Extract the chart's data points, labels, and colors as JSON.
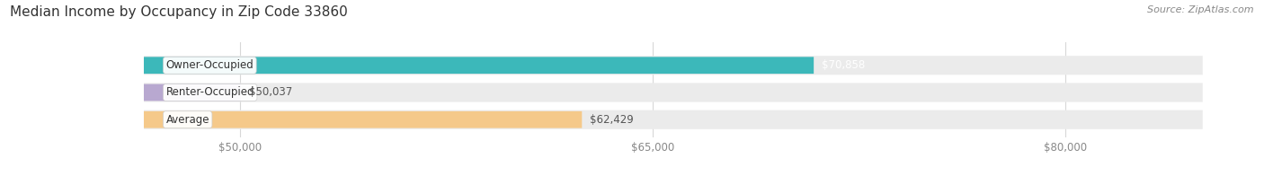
{
  "title": "MEDIAN INCOME BY OCCUPANCY IN ZIP CODE 33860",
  "source": "Source: ZipAtlas.com",
  "categories": [
    "Owner-Occupied",
    "Renter-Occupied",
    "Average"
  ],
  "values": [
    70858,
    50037,
    62429
  ],
  "bar_colors": [
    "#3cb8ba",
    "#b8a8d0",
    "#f5c98a"
  ],
  "bar_labels": [
    "$70,858",
    "$50,037",
    "$62,429"
  ],
  "label_colors": [
    "#ffffff",
    "#555555",
    "#555555"
  ],
  "xlim_min": 45000,
  "xlim_max": 85000,
  "xstart": 46500,
  "xticks": [
    50000,
    65000,
    80000
  ],
  "xtick_labels": [
    "$50,000",
    "$65,000",
    "$80,000"
  ],
  "background_color": "#ffffff",
  "bar_bg_color": "#ebebeb",
  "title_fontsize": 11,
  "label_fontsize": 8.5,
  "tick_fontsize": 8.5,
  "source_fontsize": 8
}
